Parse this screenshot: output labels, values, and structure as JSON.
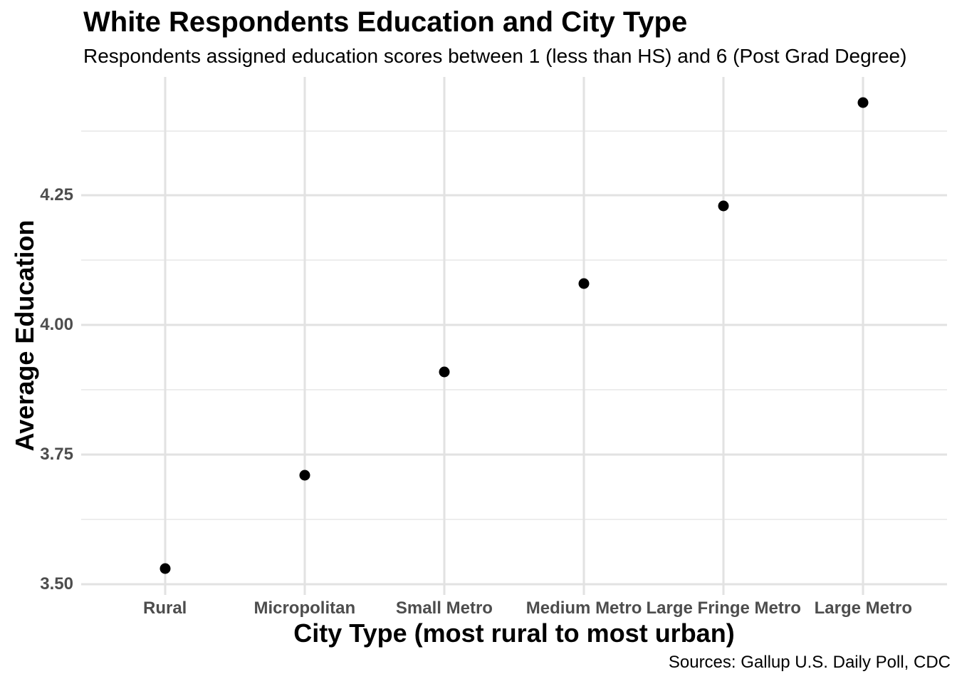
{
  "chart_data": {
    "type": "scatter",
    "title": "White Respondents Education and City Type",
    "subtitle": "Respondents assigned education scores between 1 (less than HS) and 6 (Post Grad Degree)",
    "caption": "Sources: Gallup U.S. Daily Poll, CDC",
    "xlabel": "City Type (most rural to most urban)",
    "ylabel": "Average Education",
    "categories": [
      "Rural",
      "Micropolitan",
      "Small Metro",
      "Medium Metro",
      "Large Fringe Metro",
      "Large Metro"
    ],
    "values": [
      3.53,
      3.71,
      3.91,
      4.08,
      4.23,
      4.43
    ],
    "ylim": [
      3.479,
      4.479
    ],
    "y_major_ticks": [
      3.5,
      3.75,
      4.0,
      4.25
    ],
    "y_tick_labels": [
      "3.50",
      "3.75",
      "4.00",
      "4.25"
    ],
    "y_minor_ticks": [
      3.625,
      3.875,
      4.125,
      4.375
    ],
    "grid": "horizontal major+minor, vertical at categories",
    "legend_position": "none",
    "point_color": "#000000",
    "major_grid_color": "#e2e2e2",
    "minor_grid_color": "#ededed",
    "tick_label_color": "#4d4d4d",
    "background_color": "#ffffff"
  }
}
